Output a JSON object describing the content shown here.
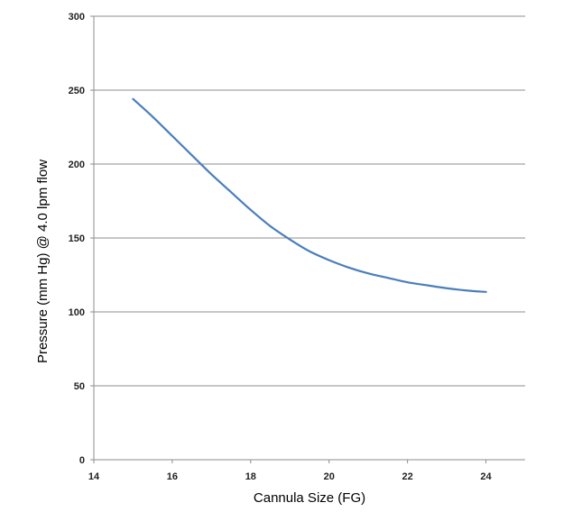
{
  "chart_data": {
    "type": "line",
    "title": "",
    "xlabel": "Cannula Size (FG)",
    "ylabel": "Pressure (mm Hg) @ 4.0 lpm flow",
    "xlim": [
      14,
      25
    ],
    "ylim": [
      0,
      300
    ],
    "x_ticks": [
      14,
      16,
      18,
      20,
      22,
      24
    ],
    "y_ticks": [
      0,
      50,
      100,
      150,
      200,
      250,
      300
    ],
    "grid": "horizontal",
    "legend": "none",
    "series": [
      {
        "color": "#4a7ebb",
        "x": [
          15,
          15.5,
          16,
          16.5,
          17,
          17.5,
          18,
          18.5,
          19,
          19.5,
          20,
          20.5,
          21,
          21.5,
          22,
          22.5,
          23,
          23.5,
          24
        ],
        "y": [
          244,
          232,
          219,
          206,
          193,
          181,
          169,
          158,
          149,
          141,
          135,
          130,
          126,
          123,
          120,
          118,
          116,
          114.5,
          113.5
        ]
      }
    ]
  }
}
